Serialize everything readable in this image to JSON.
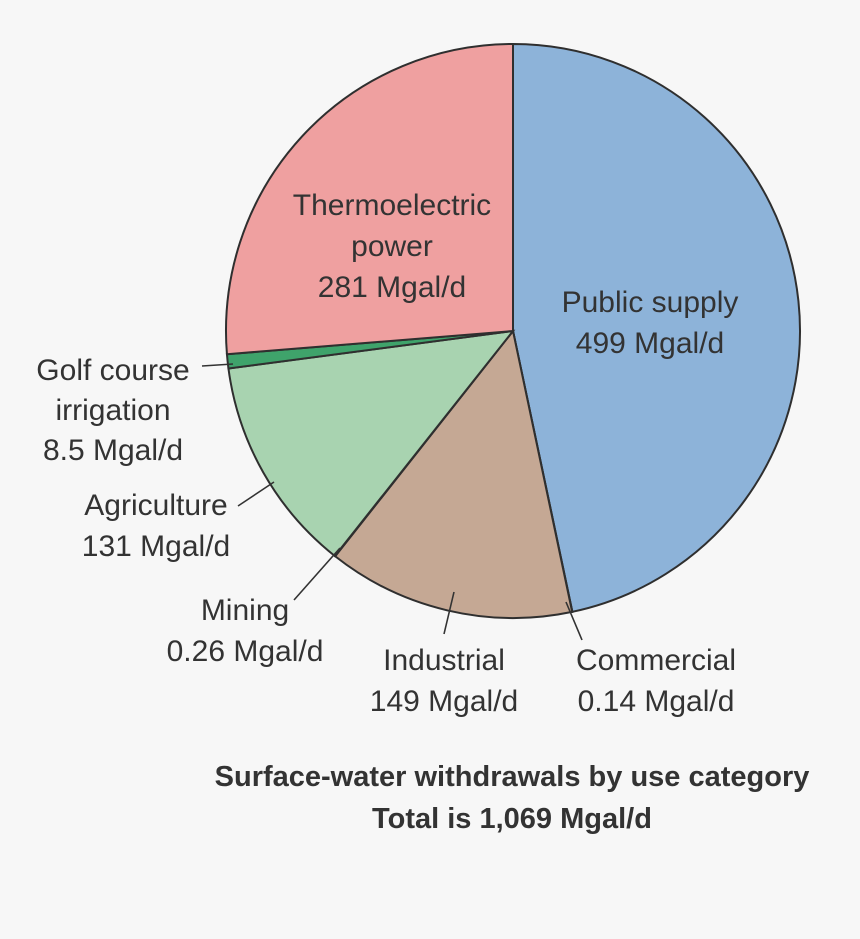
{
  "chart_data": {
    "type": "pie",
    "title": "Surface-water withdrawals by use category",
    "subtitle": "Total is 1,069 Mgal/d",
    "unit": "Mgal/d",
    "slices": [
      {
        "name": "Public supply",
        "value": 499,
        "value_label": "499 Mgal/d",
        "color": "#8db3d9"
      },
      {
        "name": "Commercial",
        "value": 0.14,
        "value_label": "0.14 Mgal/d",
        "color": "#c7d9b9"
      },
      {
        "name": "Industrial",
        "value": 149,
        "value_label": "149 Mgal/d",
        "color": "#c5a894"
      },
      {
        "name": "Mining",
        "value": 0.26,
        "value_label": "0.26 Mgal/d",
        "color": "#9c8b7a"
      },
      {
        "name": "Agriculture",
        "value": 131,
        "value_label": "131 Mgal/d",
        "color": "#a8d3b0"
      },
      {
        "name": "Golf course irrigation",
        "value": 8.5,
        "value_label": "8.5 Mgal/d",
        "color": "#3fa36b"
      },
      {
        "name": "Thermoelectric power",
        "value": 281,
        "value_label": "281 Mgal/d",
        "color": "#efa0a0"
      }
    ]
  }
}
